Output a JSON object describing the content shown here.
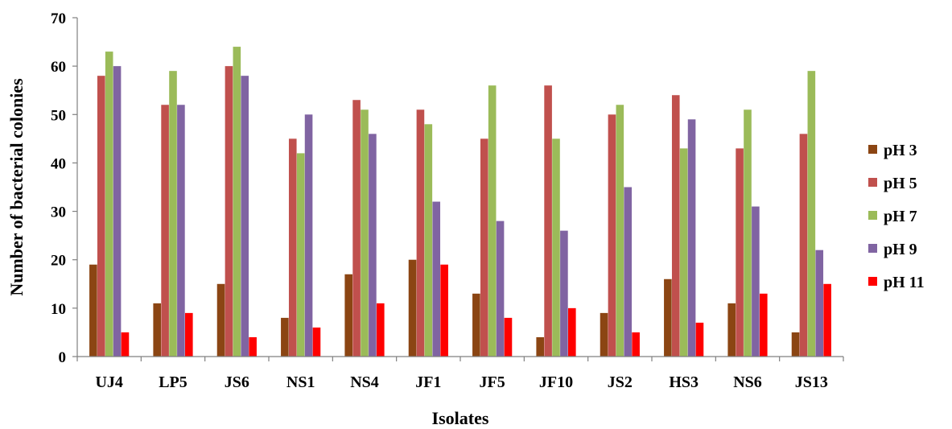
{
  "chart_data": {
    "type": "bar",
    "xlabel": "Isolates",
    "ylabel": "Number of bacterial colonies",
    "ylim": [
      0,
      70
    ],
    "yticks": [
      0,
      10,
      20,
      30,
      40,
      50,
      60,
      70
    ],
    "grid": false,
    "legend_position": "right",
    "categories": [
      "UJ4",
      "LP5",
      "JS6",
      "NS1",
      "NS4",
      "JF1",
      "JF5",
      "JF10",
      "JS2",
      "HS3",
      "NS6",
      "JS13"
    ],
    "series": [
      {
        "name": "pH 3",
        "color": "#8B4513",
        "values": [
          19,
          11,
          15,
          8,
          17,
          20,
          13,
          4,
          9,
          16,
          11,
          5
        ]
      },
      {
        "name": "pH 5",
        "color": "#C0504D",
        "values": [
          58,
          52,
          60,
          45,
          53,
          51,
          45,
          56,
          50,
          54,
          43,
          46
        ]
      },
      {
        "name": "pH 7",
        "color": "#9BBB59",
        "values": [
          63,
          59,
          64,
          42,
          51,
          48,
          56,
          45,
          52,
          43,
          51,
          59
        ]
      },
      {
        "name": "pH 9",
        "color": "#8064A2",
        "values": [
          60,
          52,
          58,
          50,
          46,
          32,
          28,
          26,
          35,
          49,
          31,
          22
        ]
      },
      {
        "name": "pH 11",
        "color": "#FF0000",
        "values": [
          5,
          9,
          4,
          6,
          11,
          19,
          8,
          10,
          5,
          7,
          13,
          15
        ]
      }
    ]
  }
}
